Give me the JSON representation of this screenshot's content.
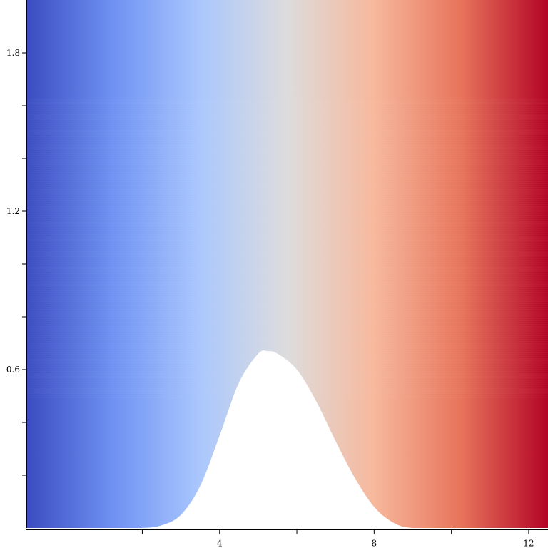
{
  "chart_data": {
    "type": "area",
    "title": "",
    "xlabel": "",
    "ylabel": "",
    "xlim": [
      -1.0,
      12.5
    ],
    "ylim": [
      0.0,
      2.0
    ],
    "x_ticks": [
      {
        "value": 2,
        "label": ""
      },
      {
        "value": 4,
        "label": "4"
      },
      {
        "value": 6,
        "label": ""
      },
      {
        "value": 8,
        "label": "8"
      },
      {
        "value": 10,
        "label": ""
      },
      {
        "value": 12,
        "label": "12"
      }
    ],
    "y_ticks": [
      {
        "value": 0.2,
        "label": ""
      },
      {
        "value": 0.4,
        "label": ""
      },
      {
        "value": 0.6,
        "label": "0.6"
      },
      {
        "value": 0.8,
        "label": ""
      },
      {
        "value": 1.0,
        "label": ""
      },
      {
        "value": 1.2,
        "label": "1.2"
      },
      {
        "value": 1.4,
        "label": ""
      },
      {
        "value": 1.6,
        "label": ""
      },
      {
        "value": 1.8,
        "label": "1.8"
      }
    ],
    "colormap": [
      "#3b4cc0",
      "#6f92f3",
      "#aac7fd",
      "#dddcdc",
      "#f7b89c",
      "#e7745b",
      "#b40426"
    ],
    "lower_boundary": {
      "description_values": "lower edge of filled region (y at x)",
      "x": [
        -1.0,
        1.0,
        2.0,
        2.5,
        3.0,
        3.5,
        4.0,
        4.5,
        5.0,
        5.25,
        5.5,
        6.0,
        6.5,
        7.0,
        7.5,
        8.0,
        8.5,
        9.0,
        10.0,
        12.5
      ],
      "y": [
        0.0,
        0.0,
        0.0,
        0.01,
        0.05,
        0.16,
        0.35,
        0.55,
        0.66,
        0.67,
        0.66,
        0.6,
        0.48,
        0.33,
        0.19,
        0.08,
        0.02,
        0.0,
        0.0,
        0.0
      ]
    },
    "upper_boundary": 2.0,
    "grid": false,
    "legend": "none"
  }
}
